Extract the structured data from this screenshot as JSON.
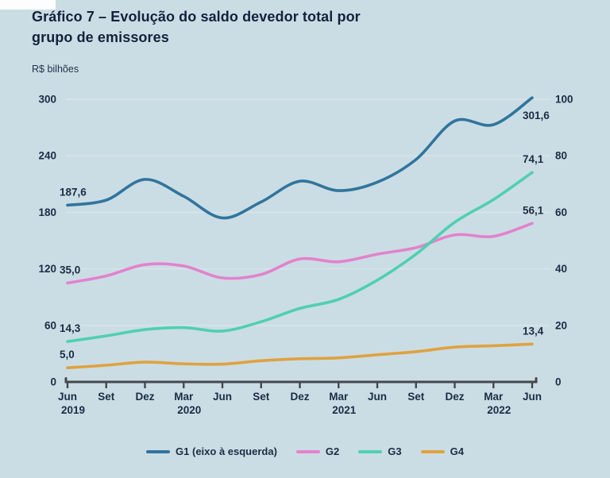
{
  "header": {
    "title_line1": "Gráfico 7 – Evolução do saldo devedor total por",
    "title_line2": "grupo de emissores",
    "units_label": "R$ bilhões"
  },
  "colors": {
    "background": "#cbdde4",
    "text": "#1d2b45",
    "axis_line": "#43484d",
    "gridline": "#d9e5ea",
    "g1": "#30759d",
    "g2": "#e282cd",
    "g3": "#4fd0b0",
    "g4": "#dfa23f"
  },
  "legend": {
    "items": [
      {
        "name": "G1",
        "label": "G1 (eixo à esquerda)",
        "color": "#30759d"
      },
      {
        "name": "G2",
        "label": "G2",
        "color": "#e282cd"
      },
      {
        "name": "G3",
        "label": "G3",
        "color": "#4fd0b0"
      },
      {
        "name": "G4",
        "label": "G4",
        "color": "#dfa23f"
      }
    ]
  },
  "chart_data": {
    "type": "line",
    "title": "Gráfico 7 – Evolução do saldo devedor total por grupo de emissores",
    "ylabel_left": "R$ bilhões",
    "categories": [
      "Jun 2019",
      "Set 2019",
      "Dez 2019",
      "Mar 2020",
      "Jun 2020",
      "Set 2020",
      "Dez 2020",
      "Mar 2021",
      "Jun 2021",
      "Set 2021",
      "Dez 2021",
      "Mar 2022",
      "Jun 2022"
    ],
    "x_tick_months": [
      "Jun",
      "Set",
      "Dez",
      "Mar",
      "Jun",
      "Set",
      "Dez",
      "Mar",
      "Jun",
      "Set",
      "Dez",
      "Mar",
      "Jun"
    ],
    "x_tick_years": [
      {
        "index": 0,
        "year": "2019"
      },
      {
        "index": 3,
        "year": "2020"
      },
      {
        "index": 7,
        "year": "2021"
      },
      {
        "index": 11,
        "year": "2022"
      }
    ],
    "axes": {
      "left": {
        "min": 0,
        "max": 300,
        "ticks": [
          0,
          60,
          120,
          180,
          240,
          300
        ]
      },
      "right": {
        "min": 0,
        "max": 100,
        "ticks": [
          0,
          20,
          40,
          60,
          80,
          100
        ]
      }
    },
    "grid": true,
    "legend_position": "bottom",
    "series": [
      {
        "name": "G1",
        "legend_label": "G1 (eixo à esquerda)",
        "axis": "left",
        "color": "#30759d",
        "values": [
          187.6,
          193,
          215,
          197,
          174,
          191,
          213,
          203,
          212,
          236,
          277,
          273,
          301.6
        ],
        "start_label": "187,6",
        "end_label": "301,6",
        "end_label_side": "below"
      },
      {
        "name": "G2",
        "legend_label": "G2",
        "axis": "right",
        "color": "#e282cd",
        "values": [
          35.0,
          37.5,
          41.5,
          41.0,
          36.8,
          38.0,
          43.5,
          42.5,
          45.2,
          47.5,
          52.0,
          51.5,
          56.1
        ],
        "start_label": "35,0",
        "end_label": "56,1",
        "end_label_side": "above"
      },
      {
        "name": "G3",
        "legend_label": "G3",
        "axis": "right",
        "color": "#4fd0b0",
        "values": [
          14.3,
          16.3,
          18.5,
          19.2,
          18.0,
          21.3,
          26.0,
          29.2,
          36.0,
          45.2,
          56.5,
          64.5,
          74.1
        ],
        "start_label": "14,3",
        "end_label": "74,1",
        "end_label_side": "above"
      },
      {
        "name": "G4",
        "legend_label": "G4",
        "axis": "right",
        "color": "#dfa23f",
        "values": [
          5.0,
          5.9,
          7.0,
          6.4,
          6.3,
          7.5,
          8.2,
          8.5,
          9.6,
          10.7,
          12.3,
          12.8,
          13.4
        ],
        "start_label": "5,0",
        "end_label": "13,4",
        "end_label_side": "above"
      }
    ]
  }
}
